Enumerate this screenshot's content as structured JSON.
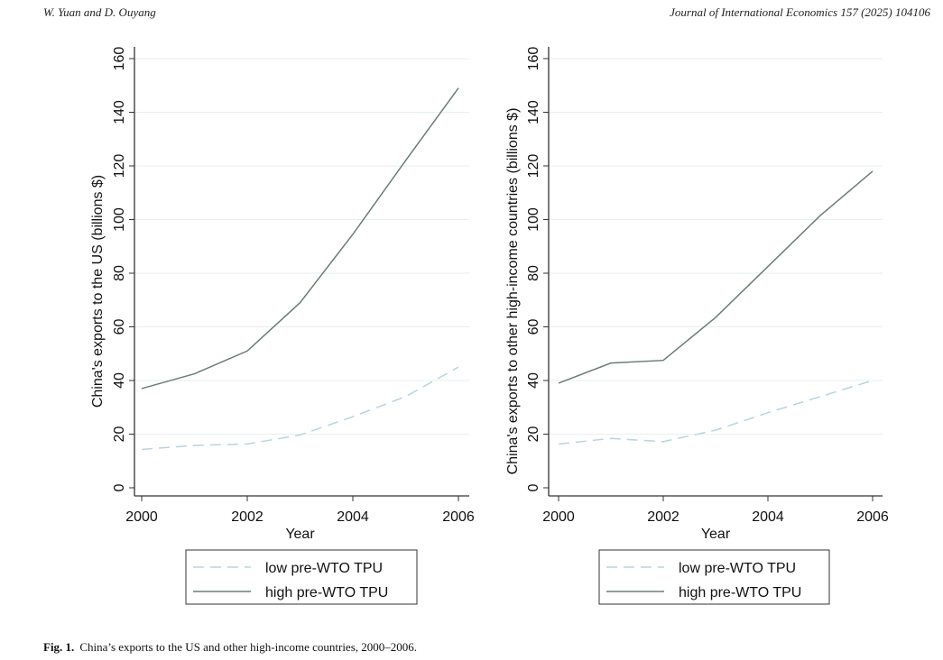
{
  "header": {
    "authors": "W. Yuan and D. Ouyang",
    "journal": "Journal of International Economics 157 (2025) 104106"
  },
  "caption": {
    "label": "Fig. 1.",
    "text": "China’s exports to the US and other high-income countries, 2000–2006."
  },
  "chart_data": [
    {
      "type": "line",
      "xlabel": "Year",
      "ylabel": "China's exports to the US (billions $)",
      "x": [
        2000,
        2001,
        2002,
        2003,
        2004,
        2005,
        2006
      ],
      "xticks": [
        2000,
        2002,
        2004,
        2006
      ],
      "ylim": [
        0,
        160
      ],
      "yticks": [
        0,
        20,
        40,
        60,
        80,
        100,
        120,
        140,
        160
      ],
      "grid": true,
      "legend": "bottom",
      "series": [
        {
          "name": "low pre-WTO TPU",
          "style": "dashed",
          "color": "#b8d4de",
          "values": [
            14.3,
            15.8,
            16.3,
            19.7,
            26.5,
            34,
            45
          ]
        },
        {
          "name": "high pre-WTO TPU",
          "style": "solid",
          "color": "#6b7d75",
          "values": [
            37,
            42.5,
            51,
            69,
            94.5,
            122,
            149
          ]
        }
      ]
    },
    {
      "type": "line",
      "xlabel": "Year",
      "ylabel": "China's exports to other high-income countries (billions $)",
      "x": [
        2000,
        2001,
        2002,
        2003,
        2004,
        2005,
        2006
      ],
      "xticks": [
        2000,
        2002,
        2004,
        2006
      ],
      "ylim": [
        0,
        160
      ],
      "yticks": [
        0,
        20,
        40,
        60,
        80,
        100,
        120,
        140,
        160
      ],
      "grid": true,
      "legend": "bottom",
      "series": [
        {
          "name": "low pre-WTO TPU",
          "style": "dashed",
          "color": "#b8d4de",
          "values": [
            16.3,
            18.4,
            17.2,
            21.5,
            28,
            34,
            40
          ]
        },
        {
          "name": "high pre-WTO TPU",
          "style": "solid",
          "color": "#6b7d75",
          "values": [
            39,
            46.5,
            47.5,
            63.5,
            82.5,
            101.5,
            118
          ]
        }
      ]
    }
  ]
}
